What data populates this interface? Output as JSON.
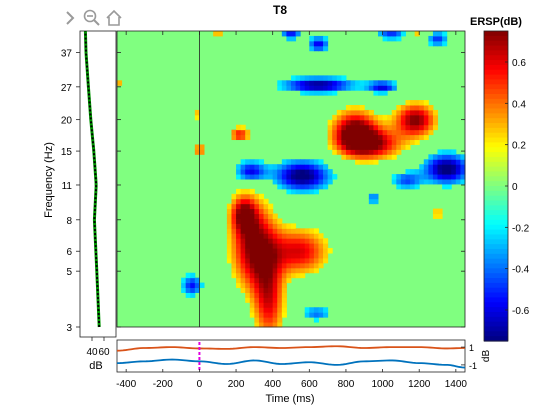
{
  "toolbar": {
    "icons": [
      "chevron-right-icon",
      "zoom-out-icon",
      "home-icon"
    ]
  },
  "chart_data": {
    "type": "heatmap",
    "title": "T8",
    "xlabel": "Time (ms)",
    "ylabel": "Frequency (Hz)",
    "xlim": [
      -450,
      1450
    ],
    "ylim": [
      3,
      45
    ],
    "yscale": "log",
    "xticks": [
      -400,
      -200,
      0,
      200,
      400,
      600,
      800,
      1000,
      1200,
      1400
    ],
    "yticks": [
      3,
      5,
      6,
      8,
      11,
      15,
      20,
      27,
      37
    ],
    "colorbar": {
      "label": "ERSP(dB)",
      "range": [
        -0.75,
        0.75
      ],
      "ticks": [
        0.6,
        0.4,
        0.2,
        0,
        -0.2,
        -0.4,
        -0.6
      ]
    },
    "significance_mask_value": 0,
    "blobs": [
      {
        "t": 300,
        "f": 6.3,
        "amp": 0.75,
        "st": 90,
        "sf": 0.28
      },
      {
        "t": 550,
        "f": 6.0,
        "amp": 0.6,
        "st": 110,
        "sf": 0.15
      },
      {
        "t": 240,
        "f": 8.5,
        "amp": 0.55,
        "st": 50,
        "sf": 0.12
      },
      {
        "t": 380,
        "f": 3.8,
        "amp": 0.55,
        "st": 60,
        "sf": 0.28
      },
      {
        "t": 850,
        "f": 18.0,
        "amp": 0.8,
        "st": 90,
        "sf": 0.14
      },
      {
        "t": 1180,
        "f": 20.0,
        "amp": 0.75,
        "st": 80,
        "sf": 0.11
      },
      {
        "t": 950,
        "f": 16.0,
        "amp": 0.6,
        "st": 120,
        "sf": 0.1
      },
      {
        "t": 220,
        "f": 17.5,
        "amp": 0.55,
        "st": 40,
        "sf": 0.05
      },
      {
        "t": 0,
        "f": 15.2,
        "amp": 0.45,
        "st": 25,
        "sf": 0.04
      },
      {
        "t": -20,
        "f": 21.0,
        "amp": 0.35,
        "st": 18,
        "sf": 0.03
      },
      {
        "t": 1300,
        "f": 8.5,
        "amp": 0.3,
        "st": 30,
        "sf": 0.04
      },
      {
        "t": 560,
        "f": 12.0,
        "amp": -0.8,
        "st": 110,
        "sf": 0.1
      },
      {
        "t": 280,
        "f": 12.5,
        "amp": -0.6,
        "st": 60,
        "sf": 0.07
      },
      {
        "t": 1350,
        "f": 12.8,
        "amp": -0.8,
        "st": 90,
        "sf": 0.1
      },
      {
        "t": 1130,
        "f": 11.5,
        "amp": -0.45,
        "st": 60,
        "sf": 0.06
      },
      {
        "t": 650,
        "f": 27.5,
        "amp": -0.75,
        "st": 140,
        "sf": 0.05
      },
      {
        "t": 1000,
        "f": 27.0,
        "amp": -0.6,
        "st": 60,
        "sf": 0.04
      },
      {
        "t": -40,
        "f": 4.4,
        "amp": -0.55,
        "st": 40,
        "sf": 0.07
      },
      {
        "t": 640,
        "f": 3.4,
        "amp": -0.4,
        "st": 60,
        "sf": 0.05
      },
      {
        "t": 500,
        "f": 44.0,
        "amp": -0.55,
        "st": 40,
        "sf": 0.04
      },
      {
        "t": 650,
        "f": 40.0,
        "amp": -0.6,
        "st": 40,
        "sf": 0.05
      },
      {
        "t": 1050,
        "f": 44.0,
        "amp": -0.5,
        "st": 60,
        "sf": 0.04
      },
      {
        "t": 1300,
        "f": 42.0,
        "amp": -0.5,
        "st": 40,
        "sf": 0.05
      },
      {
        "t": 950,
        "f": 9.8,
        "amp": -0.4,
        "st": 25,
        "sf": 0.05
      },
      {
        "t": 100,
        "f": 45.0,
        "amp": 0.4,
        "st": 30,
        "sf": 0.03
      },
      {
        "t": 1180,
        "f": 45.0,
        "amp": 0.4,
        "st": 40,
        "sf": 0.03
      },
      {
        "t": -440,
        "f": 28.0,
        "amp": 0.3,
        "st": 15,
        "sf": 0.02
      }
    ],
    "spectrum_panel": {
      "xlabel": "dB",
      "xticks": [
        40,
        60
      ],
      "xlim": [
        20,
        80
      ],
      "frequency": [
        3,
        5,
        8,
        11,
        15,
        20,
        27,
        37,
        45
      ],
      "power": [
        52,
        48,
        44,
        47,
        43,
        38,
        34,
        30,
        29
      ]
    },
    "erp_panel": {
      "ylabel": "dB",
      "yticks": [
        1,
        -1
      ],
      "ylim": [
        -1.8,
        1.8
      ],
      "stimulus_marker": 0,
      "series": [
        {
          "color": "#d95319",
          "time": [
            -450,
            -300,
            -150,
            0,
            150,
            300,
            450,
            600,
            750,
            900,
            1050,
            1200,
            1350,
            1450
          ],
          "values": [
            0.6,
            0.9,
            1.0,
            0.85,
            0.8,
            1.0,
            0.9,
            1.0,
            1.1,
            0.9,
            1.0,
            1.0,
            0.85,
            0.9
          ]
        },
        {
          "color": "#0072bd",
          "time": [
            -450,
            -300,
            -150,
            0,
            150,
            300,
            450,
            600,
            750,
            900,
            1050,
            1200,
            1350,
            1450
          ],
          "values": [
            -0.8,
            -0.6,
            -0.4,
            -0.6,
            -0.9,
            -0.5,
            -0.9,
            -0.7,
            -1.0,
            -0.6,
            -0.5,
            -0.8,
            -1.0,
            -1.3
          ]
        }
      ]
    }
  }
}
